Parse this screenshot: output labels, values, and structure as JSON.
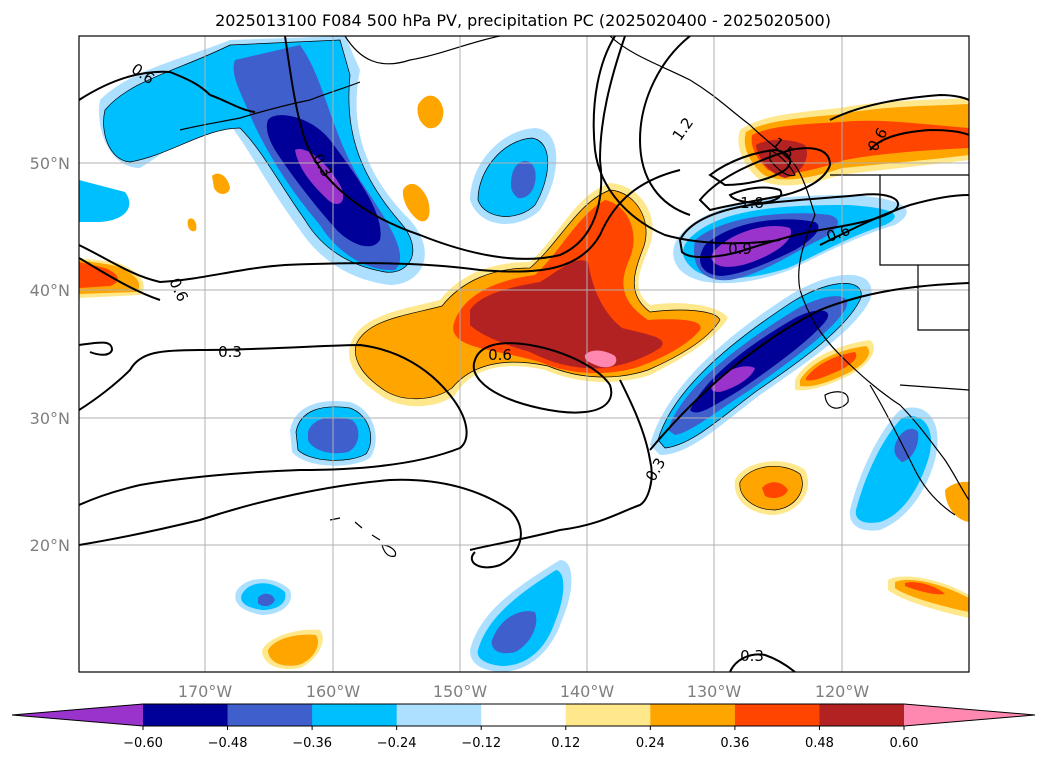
{
  "title": "2025013100 F084 500 hPa PV, precipitation PC (2025020400 - 2025020500)",
  "lat_labels": [
    "50°N",
    "40°N",
    "30°N",
    "20°N"
  ],
  "lon_labels": [
    "170°W",
    "160°W",
    "150°W",
    "140°W",
    "130°W",
    "120°W"
  ],
  "colorbar": {
    "ticks": [
      "−0.60",
      "−0.48",
      "−0.36",
      "−0.24",
      "−0.12",
      "0.12",
      "0.24",
      "0.36",
      "0.48",
      "0.60"
    ],
    "colors": [
      "#9933cc",
      "#000099",
      "#3f5fcc",
      "#00bfff",
      "#addfff",
      "#ffffff",
      "#ffe88c",
      "#ffa500",
      "#ff4500",
      "#b22222",
      "#ff88b0"
    ]
  },
  "contour_labels": [
    "0.6",
    "0.6",
    "0.3",
    "0.3",
    "0.6",
    "0.3",
    "0.3",
    "0.9",
    "1.8",
    "1.5",
    "1.2",
    "0.6",
    "0.6"
  ],
  "colors": {
    "purple": "#9933cc",
    "navy": "#000099",
    "royal": "#3f5fcc",
    "sky": "#00bfff",
    "pale_blue": "#addfff",
    "yellow": "#ffe88c",
    "orange": "#ffa500",
    "red_orange": "#ff4500",
    "dark_red": "#b22222",
    "pink": "#ff88b0"
  }
}
